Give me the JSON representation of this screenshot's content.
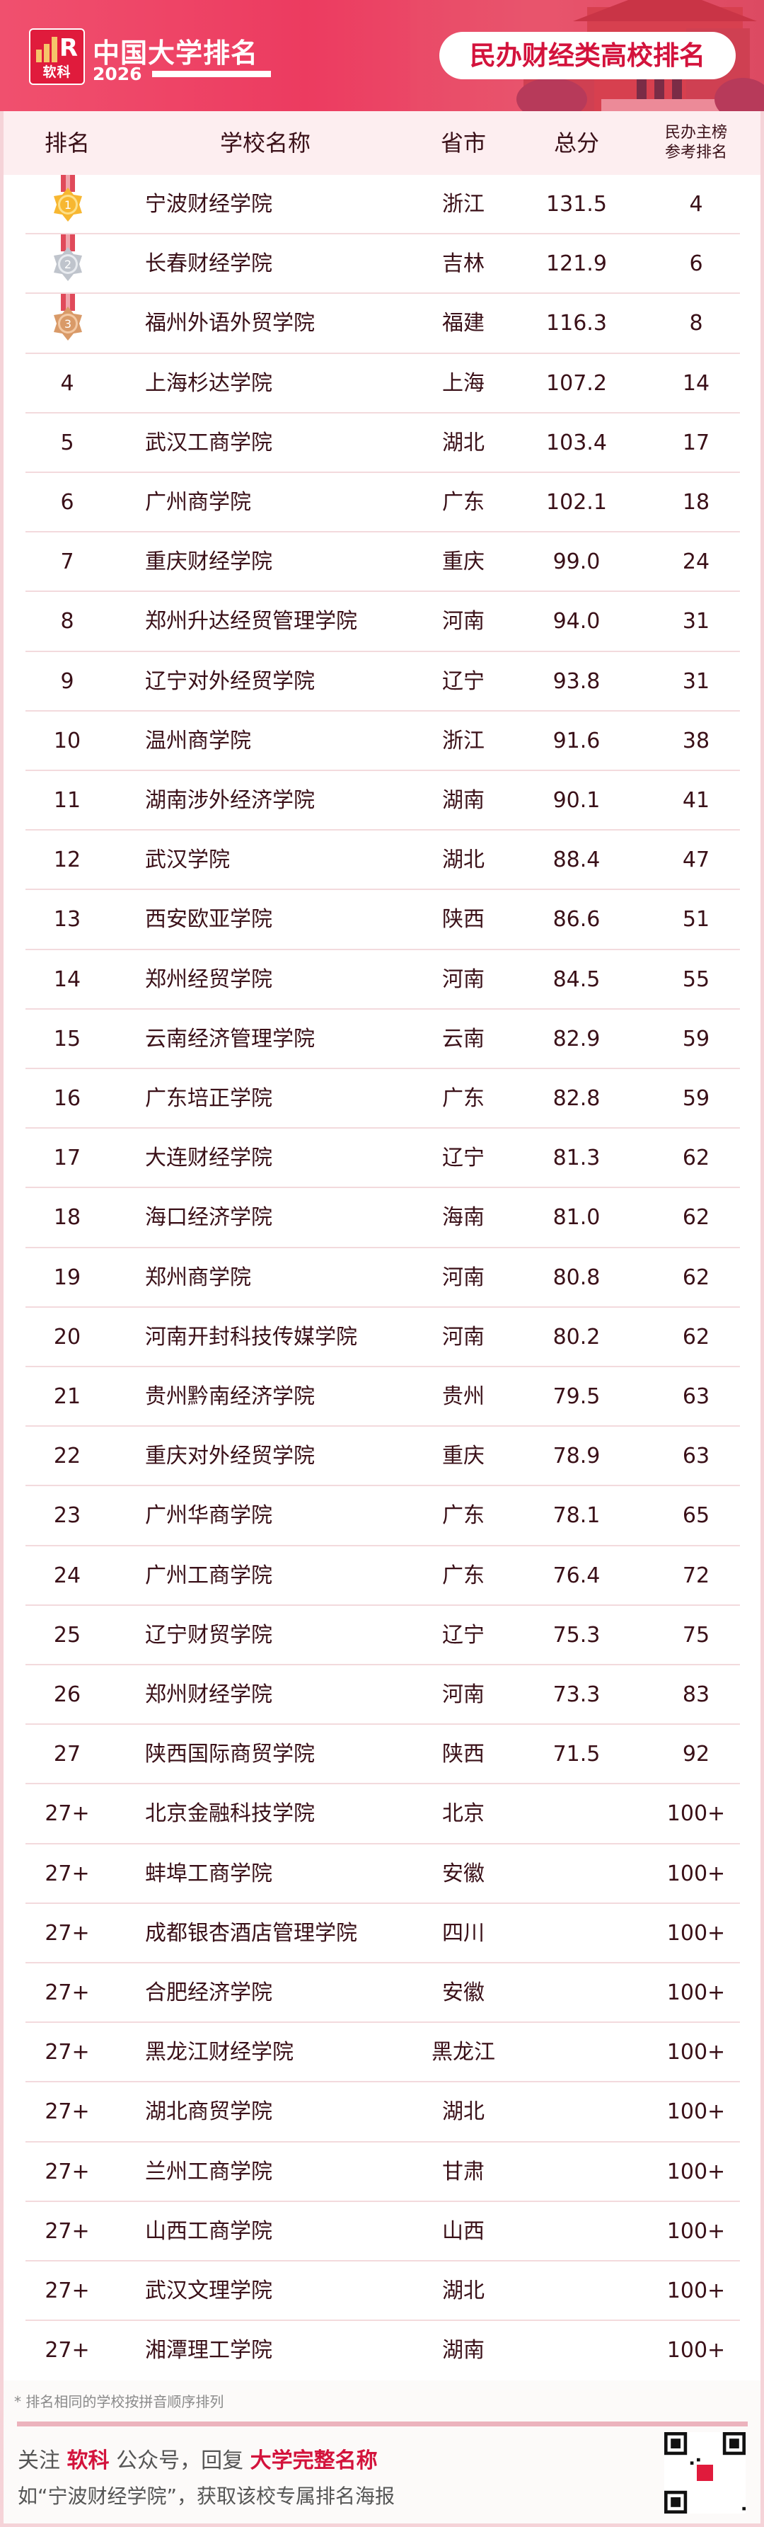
{
  "header": {
    "logo_text": "软科",
    "title": "中国大学排名",
    "year": "2026",
    "badge": "民办财经类高校排名"
  },
  "colors": {
    "accent": "#d3133c",
    "banner": "#ec3b60",
    "text": "#3a1018",
    "header_bg": "#fdeef0"
  },
  "table": {
    "columns": {
      "rank": "排名",
      "name": "学校名称",
      "province": "省市",
      "score": "总分",
      "ref_line1": "民办主榜",
      "ref_line2": "参考排名"
    },
    "rows": [
      {
        "rank": "1",
        "medal": "gold",
        "name": "宁波财经学院",
        "province": "浙江",
        "score": "131.5",
        "ref": "4"
      },
      {
        "rank": "2",
        "medal": "silver",
        "name": "长春财经学院",
        "province": "吉林",
        "score": "121.9",
        "ref": "6"
      },
      {
        "rank": "3",
        "medal": "bronze",
        "name": "福州外语外贸学院",
        "province": "福建",
        "score": "116.3",
        "ref": "8"
      },
      {
        "rank": "4",
        "name": "上海杉达学院",
        "province": "上海",
        "score": "107.2",
        "ref": "14"
      },
      {
        "rank": "5",
        "name": "武汉工商学院",
        "province": "湖北",
        "score": "103.4",
        "ref": "17"
      },
      {
        "rank": "6",
        "name": "广州商学院",
        "province": "广东",
        "score": "102.1",
        "ref": "18"
      },
      {
        "rank": "7",
        "name": "重庆财经学院",
        "province": "重庆",
        "score": "99.0",
        "ref": "24"
      },
      {
        "rank": "8",
        "name": "郑州升达经贸管理学院",
        "province": "河南",
        "score": "94.0",
        "ref": "31"
      },
      {
        "rank": "9",
        "name": "辽宁对外经贸学院",
        "province": "辽宁",
        "score": "93.8",
        "ref": "31"
      },
      {
        "rank": "10",
        "name": "温州商学院",
        "province": "浙江",
        "score": "91.6",
        "ref": "38"
      },
      {
        "rank": "11",
        "name": "湖南涉外经济学院",
        "province": "湖南",
        "score": "90.1",
        "ref": "41"
      },
      {
        "rank": "12",
        "name": "武汉学院",
        "province": "湖北",
        "score": "88.4",
        "ref": "47"
      },
      {
        "rank": "13",
        "name": "西安欧亚学院",
        "province": "陕西",
        "score": "86.6",
        "ref": "51"
      },
      {
        "rank": "14",
        "name": "郑州经贸学院",
        "province": "河南",
        "score": "84.5",
        "ref": "55"
      },
      {
        "rank": "15",
        "name": "云南经济管理学院",
        "province": "云南",
        "score": "82.9",
        "ref": "59"
      },
      {
        "rank": "16",
        "name": "广东培正学院",
        "province": "广东",
        "score": "82.8",
        "ref": "59"
      },
      {
        "rank": "17",
        "name": "大连财经学院",
        "province": "辽宁",
        "score": "81.3",
        "ref": "62"
      },
      {
        "rank": "18",
        "name": "海口经济学院",
        "province": "海南",
        "score": "81.0",
        "ref": "62"
      },
      {
        "rank": "19",
        "name": "郑州商学院",
        "province": "河南",
        "score": "80.8",
        "ref": "62"
      },
      {
        "rank": "20",
        "name": "河南开封科技传媒学院",
        "province": "河南",
        "score": "80.2",
        "ref": "62"
      },
      {
        "rank": "21",
        "name": "贵州黔南经济学院",
        "province": "贵州",
        "score": "79.5",
        "ref": "63"
      },
      {
        "rank": "22",
        "name": "重庆对外经贸学院",
        "province": "重庆",
        "score": "78.9",
        "ref": "63"
      },
      {
        "rank": "23",
        "name": "广州华商学院",
        "province": "广东",
        "score": "78.1",
        "ref": "65"
      },
      {
        "rank": "24",
        "name": "广州工商学院",
        "province": "广东",
        "score": "76.4",
        "ref": "72"
      },
      {
        "rank": "25",
        "name": "辽宁财贸学院",
        "province": "辽宁",
        "score": "75.3",
        "ref": "75"
      },
      {
        "rank": "26",
        "name": "郑州财经学院",
        "province": "河南",
        "score": "73.3",
        "ref": "83"
      },
      {
        "rank": "27",
        "name": "陕西国际商贸学院",
        "province": "陕西",
        "score": "71.5",
        "ref": "92"
      },
      {
        "rank": "27+",
        "name": "北京金融科技学院",
        "province": "北京",
        "score": "",
        "ref": "100+"
      },
      {
        "rank": "27+",
        "name": "蚌埠工商学院",
        "province": "安徽",
        "score": "",
        "ref": "100+"
      },
      {
        "rank": "27+",
        "name": "成都银杏酒店管理学院",
        "province": "四川",
        "score": "",
        "ref": "100+"
      },
      {
        "rank": "27+",
        "name": "合肥经济学院",
        "province": "安徽",
        "score": "",
        "ref": "100+"
      },
      {
        "rank": "27+",
        "name": "黑龙江财经学院",
        "province": "黑龙江",
        "score": "",
        "ref": "100+"
      },
      {
        "rank": "27+",
        "name": "湖北商贸学院",
        "province": "湖北",
        "score": "",
        "ref": "100+"
      },
      {
        "rank": "27+",
        "name": "兰州工商学院",
        "province": "甘肃",
        "score": "",
        "ref": "100+"
      },
      {
        "rank": "27+",
        "name": "山西工商学院",
        "province": "山西",
        "score": "",
        "ref": "100+"
      },
      {
        "rank": "27+",
        "name": "武汉文理学院",
        "province": "湖北",
        "score": "",
        "ref": "100+"
      },
      {
        "rank": "27+",
        "name": "湘潭理工学院",
        "province": "湖南",
        "score": "",
        "ref": "100+"
      }
    ]
  },
  "footer": {
    "note": "* 排名相同的学校按拼音顺序排列",
    "line1_a": "关注 ",
    "line1_b": "软科",
    "line1_c": " 公众号，回复 ",
    "line1_d": "大学完整名称",
    "line2": "如“宁波财经学院”，获取该校专属排名海报",
    "qr_icon": "qr-code"
  }
}
